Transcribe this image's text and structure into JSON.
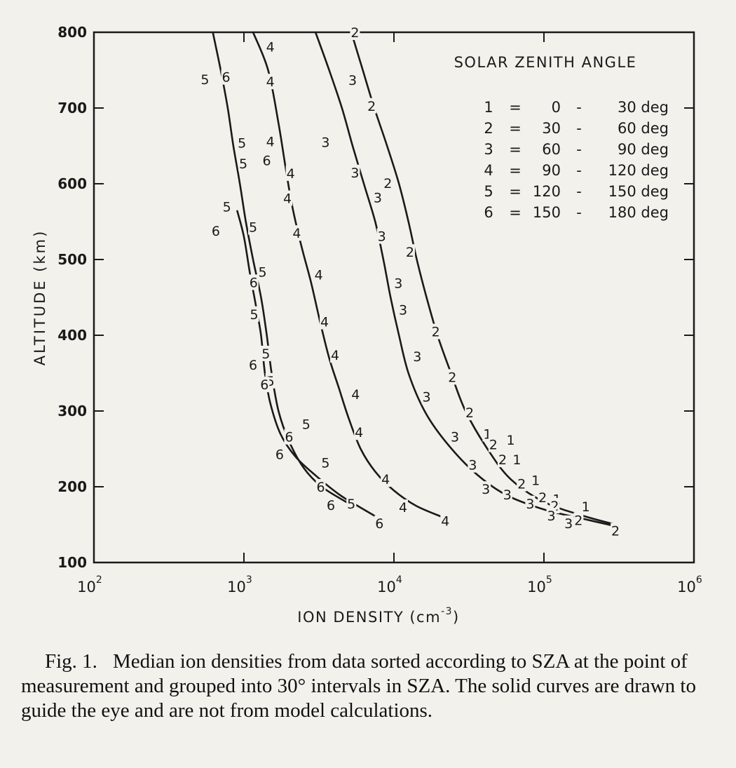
{
  "chart_data": {
    "type": "scatter",
    "xscale": "log",
    "xlim": [
      100,
      1000000
    ],
    "ylim": [
      100,
      800
    ],
    "xlabel": "ION DENSITY (cm",
    "xlabel_exp": "-3",
    "xlabel_close": ")",
    "ylabel": "ALTITUDE (km)",
    "x_ticks": [
      {
        "value": 100,
        "base": "10",
        "exp": "2"
      },
      {
        "value": 1000,
        "base": "10",
        "exp": "3"
      },
      {
        "value": 10000,
        "base": "10",
        "exp": "4"
      },
      {
        "value": 100000,
        "base": "10",
        "exp": "5"
      },
      {
        "value": 1000000,
        "base": "10",
        "exp": "6"
      }
    ],
    "y_ticks": [
      100,
      200,
      300,
      400,
      500,
      600,
      700,
      800
    ],
    "grid": false,
    "legend": {
      "title": "SOLAR ZENITH ANGLE",
      "position": "top-right",
      "entries": [
        {
          "key": "1",
          "eq": "=",
          "lo": "0",
          "dash": "-",
          "hi": "30 deg"
        },
        {
          "key": "2",
          "eq": "=",
          "lo": "30",
          "dash": "-",
          "hi": "60 deg"
        },
        {
          "key": "3",
          "eq": "=",
          "lo": "60",
          "dash": "-",
          "hi": "90 deg"
        },
        {
          "key": "4",
          "eq": "=",
          "lo": "90",
          "dash": "-",
          "hi": "120 deg"
        },
        {
          "key": "5",
          "eq": "=",
          "lo": "120",
          "dash": "-",
          "hi": "150 deg"
        },
        {
          "key": "6",
          "eq": "=",
          "lo": "150",
          "dash": "-",
          "hi": "180 deg"
        }
      ]
    },
    "curves": [
      {
        "points": [
          [
            5200,
            800
          ],
          [
            6200,
            750
          ],
          [
            7400,
            700
          ],
          [
            9000,
            650
          ],
          [
            10800,
            600
          ],
          [
            12500,
            550
          ],
          [
            14200,
            500
          ],
          [
            16500,
            450
          ],
          [
            19500,
            400
          ],
          [
            24000,
            350
          ],
          [
            30000,
            300
          ],
          [
            42000,
            250
          ],
          [
            60000,
            210
          ],
          [
            100000,
            180
          ],
          [
            180000,
            162
          ],
          [
            300000,
            150
          ]
        ]
      },
      {
        "points": [
          [
            3000,
            800
          ],
          [
            3700,
            750
          ],
          [
            4500,
            700
          ],
          [
            5300,
            650
          ],
          [
            6300,
            600
          ],
          [
            7500,
            550
          ],
          [
            8500,
            500
          ],
          [
            9500,
            450
          ],
          [
            10800,
            400
          ],
          [
            12500,
            350
          ],
          [
            16000,
            300
          ],
          [
            22000,
            260
          ],
          [
            34000,
            220
          ],
          [
            55000,
            190
          ],
          [
            100000,
            170
          ],
          [
            180000,
            158
          ],
          [
            300000,
            148
          ]
        ]
      },
      {
        "points": [
          [
            1150,
            800
          ],
          [
            1450,
            750
          ],
          [
            1700,
            680
          ],
          [
            1900,
            620
          ],
          [
            2100,
            570
          ],
          [
            2400,
            520
          ],
          [
            2800,
            470
          ],
          [
            3200,
            420
          ],
          [
            3700,
            370
          ],
          [
            4300,
            330
          ],
          [
            5000,
            290
          ],
          [
            6000,
            250
          ],
          [
            7500,
            220
          ],
          [
            10000,
            195
          ],
          [
            14000,
            175
          ],
          [
            21000,
            160
          ]
        ]
      },
      {
        "points": [
          [
            620,
            800
          ],
          [
            700,
            750
          ],
          [
            780,
            700
          ],
          [
            850,
            650
          ],
          [
            940,
            600
          ],
          [
            1030,
            550
          ],
          [
            1150,
            500
          ],
          [
            1300,
            450
          ],
          [
            1420,
            400
          ],
          [
            1530,
            350
          ],
          [
            1700,
            300
          ],
          [
            2000,
            260
          ],
          [
            2500,
            225
          ],
          [
            3300,
            200
          ],
          [
            5000,
            178
          ]
        ]
      },
      {
        "points": [
          [
            900,
            565
          ],
          [
            1000,
            530
          ],
          [
            1100,
            480
          ],
          [
            1200,
            440
          ],
          [
            1300,
            400
          ],
          [
            1380,
            350
          ],
          [
            1500,
            310
          ],
          [
            1750,
            270
          ],
          [
            2200,
            240
          ],
          [
            3000,
            215
          ],
          [
            4300,
            190
          ],
          [
            5700,
            175
          ],
          [
            8000,
            158
          ]
        ]
      }
    ],
    "labels": [
      {
        "t": "2",
        "x": 5500,
        "y": 800
      },
      {
        "t": "3",
        "x": 5300,
        "y": 737
      },
      {
        "t": "2",
        "x": 7100,
        "y": 703
      },
      {
        "t": "3",
        "x": 3500,
        "y": 655
      },
      {
        "t": "3",
        "x": 5500,
        "y": 615
      },
      {
        "t": "2",
        "x": 9100,
        "y": 601
      },
      {
        "t": "3",
        "x": 7800,
        "y": 582
      },
      {
        "t": "3",
        "x": 8300,
        "y": 531
      },
      {
        "t": "2",
        "x": 12800,
        "y": 510
      },
      {
        "t": "3",
        "x": 10700,
        "y": 469
      },
      {
        "t": "3",
        "x": 11500,
        "y": 434
      },
      {
        "t": "2",
        "x": 19000,
        "y": 405
      },
      {
        "t": "3",
        "x": 14300,
        "y": 372
      },
      {
        "t": "2",
        "x": 24500,
        "y": 345
      },
      {
        "t": "3",
        "x": 16500,
        "y": 319
      },
      {
        "t": "2",
        "x": 32000,
        "y": 298
      },
      {
        "t": "3",
        "x": 25500,
        "y": 266
      },
      {
        "t": "3",
        "x": 33500,
        "y": 229
      },
      {
        "t": "3",
        "x": 41000,
        "y": 197
      },
      {
        "t": "1",
        "x": 42000,
        "y": 270
      },
      {
        "t": "2",
        "x": 46000,
        "y": 256
      },
      {
        "t": "1",
        "x": 60000,
        "y": 262
      },
      {
        "t": "2",
        "x": 53000,
        "y": 236
      },
      {
        "t": "1",
        "x": 66000,
        "y": 236
      },
      {
        "t": "2",
        "x": 71000,
        "y": 204
      },
      {
        "t": "1",
        "x": 88000,
        "y": 209
      },
      {
        "t": "3",
        "x": 57000,
        "y": 190
      },
      {
        "t": "3",
        "x": 81000,
        "y": 178
      },
      {
        "t": "2",
        "x": 98000,
        "y": 186
      },
      {
        "t": "1",
        "x": 122000,
        "y": 184
      },
      {
        "t": "2",
        "x": 118000,
        "y": 175
      },
      {
        "t": "3",
        "x": 112000,
        "y": 162
      },
      {
        "t": "3",
        "x": 146000,
        "y": 152
      },
      {
        "t": "2",
        "x": 170000,
        "y": 156
      },
      {
        "t": "1",
        "x": 190000,
        "y": 174
      },
      {
        "t": "2",
        "x": 300000,
        "y": 142
      },
      {
        "t": "4",
        "x": 1500,
        "y": 781
      },
      {
        "t": "4",
        "x": 1500,
        "y": 735
      },
      {
        "t": "4",
        "x": 1500,
        "y": 656
      },
      {
        "t": "4",
        "x": 2050,
        "y": 614
      },
      {
        "t": "4",
        "x": 1950,
        "y": 581
      },
      {
        "t": "4",
        "x": 2250,
        "y": 535
      },
      {
        "t": "4",
        "x": 3150,
        "y": 480
      },
      {
        "t": "4",
        "x": 3450,
        "y": 418
      },
      {
        "t": "4",
        "x": 4050,
        "y": 374
      },
      {
        "t": "4",
        "x": 5550,
        "y": 322
      },
      {
        "t": "4",
        "x": 5850,
        "y": 272
      },
      {
        "t": "4",
        "x": 8800,
        "y": 210
      },
      {
        "t": "4",
        "x": 11500,
        "y": 173
      },
      {
        "t": "4",
        "x": 22000,
        "y": 155
      },
      {
        "t": "5",
        "x": 550,
        "y": 738
      },
      {
        "t": "6",
        "x": 760,
        "y": 741
      },
      {
        "t": "5",
        "x": 970,
        "y": 654
      },
      {
        "t": "5",
        "x": 990,
        "y": 627
      },
      {
        "t": "6",
        "x": 1420,
        "y": 631
      },
      {
        "t": "5",
        "x": 770,
        "y": 570
      },
      {
        "t": "5",
        "x": 1150,
        "y": 543
      },
      {
        "t": "6",
        "x": 650,
        "y": 538
      },
      {
        "t": "5",
        "x": 1330,
        "y": 484
      },
      {
        "t": "6",
        "x": 1160,
        "y": 470
      },
      {
        "t": "5",
        "x": 1170,
        "y": 428
      },
      {
        "t": "5",
        "x": 1400,
        "y": 376
      },
      {
        "t": "6",
        "x": 1150,
        "y": 361
      },
      {
        "t": "5",
        "x": 1500,
        "y": 340
      },
      {
        "t": "6",
        "x": 1370,
        "y": 335
      },
      {
        "t": "5",
        "x": 2600,
        "y": 283
      },
      {
        "t": "6",
        "x": 2000,
        "y": 266
      },
      {
        "t": "6",
        "x": 1730,
        "y": 243
      },
      {
        "t": "5",
        "x": 3500,
        "y": 232
      },
      {
        "t": "6",
        "x": 3250,
        "y": 200
      },
      {
        "t": "6",
        "x": 3800,
        "y": 176
      },
      {
        "t": "5",
        "x": 5200,
        "y": 178
      },
      {
        "t": "6",
        "x": 8000,
        "y": 152
      }
    ]
  },
  "caption": {
    "fig_num": "Fig. 1.",
    "text": "Median ion densities from data sorted according to SZA at the point of measurement and grouped into 30° intervals in SZA. The solid curves are drawn to guide the eye and are not from model calculations."
  }
}
